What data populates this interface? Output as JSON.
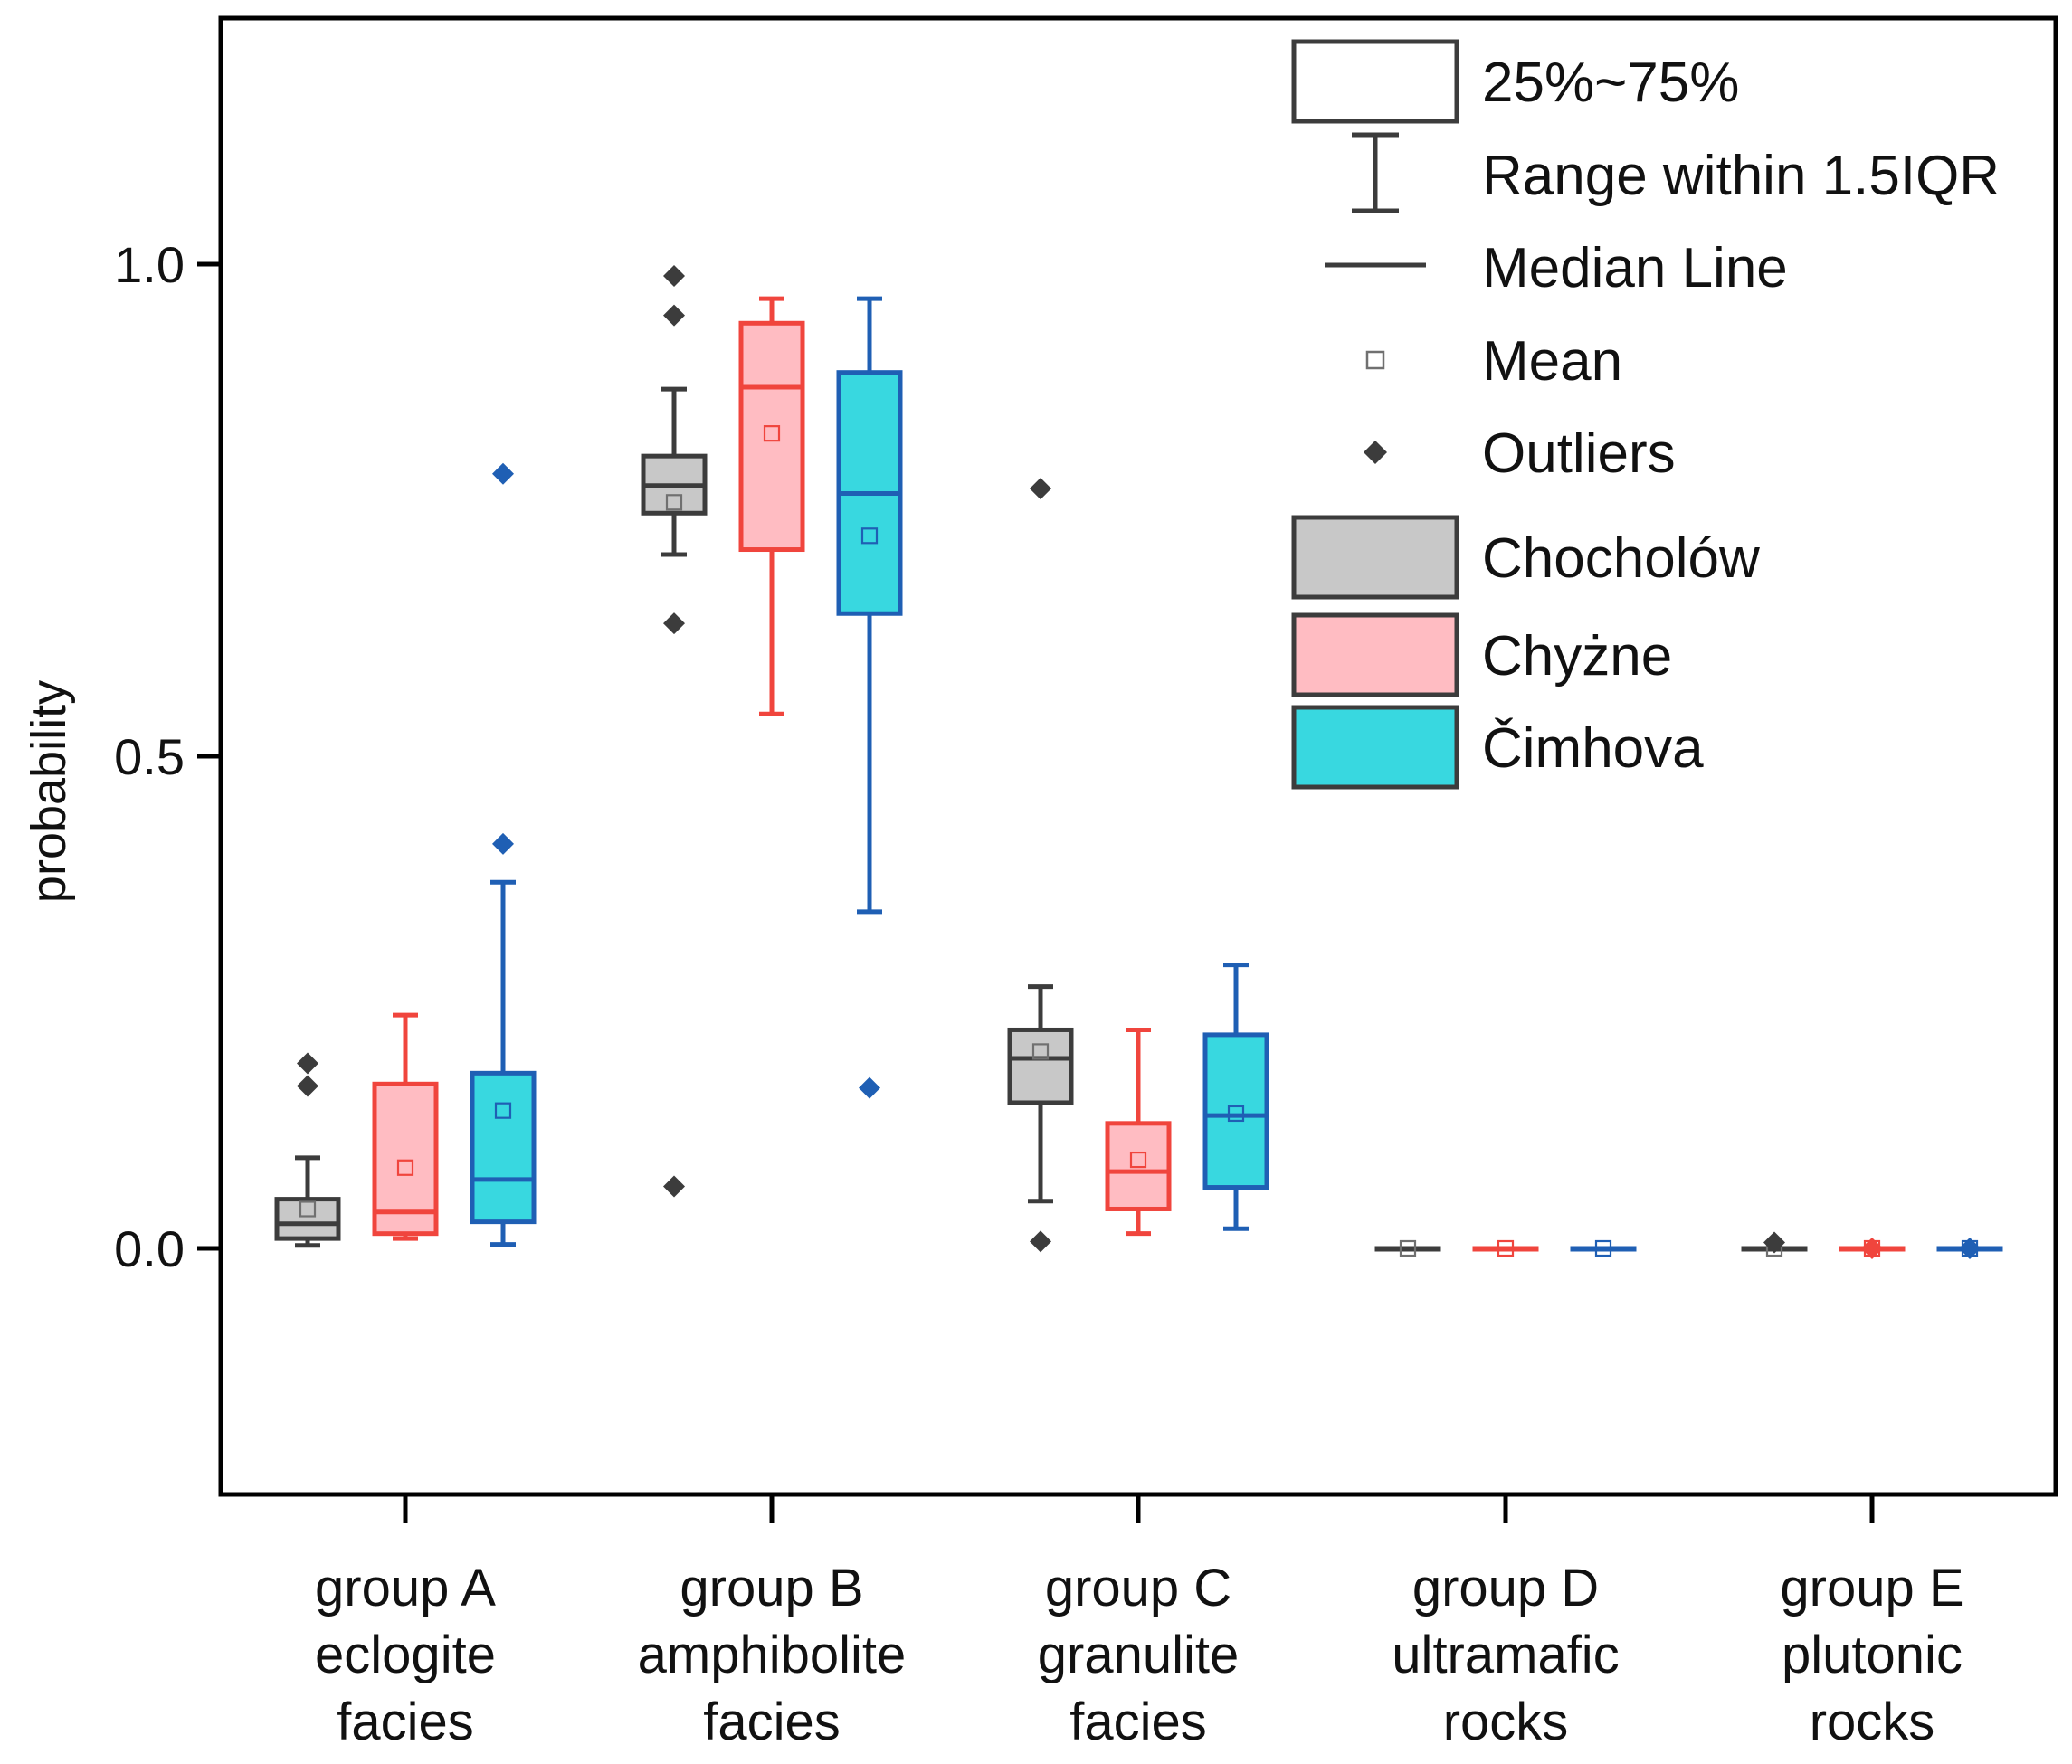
{
  "chart_data": {
    "type": "box",
    "title": "",
    "xlabel": "",
    "ylabel": "probability",
    "ylim": [
      -0.25,
      1.25
    ],
    "yticks": [
      0.0,
      0.5,
      1.0
    ],
    "ytick_labels": [
      "0.0",
      "0.5",
      "1.0"
    ],
    "categories": [
      {
        "lines": [
          "group A",
          "eclogite",
          "facies"
        ]
      },
      {
        "lines": [
          "group B",
          "amphibolite",
          "facies"
        ]
      },
      {
        "lines": [
          "group C",
          "granulite",
          "facies"
        ]
      },
      {
        "lines": [
          "group D",
          "ultramafic",
          "rocks"
        ]
      },
      {
        "lines": [
          "group E",
          "plutonic",
          "rocks"
        ]
      }
    ],
    "series": [
      {
        "name": "Chocholów",
        "fill": "#c8c8c8",
        "stroke": "#3c3c3c",
        "boxes": [
          {
            "q1": 0.01,
            "median": 0.025,
            "q3": 0.05,
            "whisker_low": 0.003,
            "whisker_high": 0.092,
            "mean": 0.04,
            "outliers": [
              0.188,
              0.165
            ]
          },
          {
            "q1": 0.747,
            "median": 0.775,
            "q3": 0.805,
            "whisker_low": 0.705,
            "whisker_high": 0.873,
            "mean": 0.758,
            "outliers": [
              0.988,
              0.948,
              0.635,
              0.063
            ]
          },
          {
            "q1": 0.148,
            "median": 0.193,
            "q3": 0.222,
            "whisker_low": 0.048,
            "whisker_high": 0.266,
            "mean": 0.2,
            "outliers": [
              0.772,
              0.007
            ]
          },
          {
            "q1": 0.0,
            "median": 0.0,
            "q3": 0.0,
            "whisker_low": 0.0,
            "whisker_high": 0.0,
            "mean": 0.0,
            "outliers": []
          },
          {
            "q1": 0.0,
            "median": 0.0,
            "q3": 0.0,
            "whisker_low": 0.0,
            "whisker_high": 0.0,
            "mean": 0.0,
            "outliers": [
              0.006
            ]
          }
        ]
      },
      {
        "name": "Chyżne",
        "fill": "#ffbcc2",
        "stroke": "#f0453d",
        "boxes": [
          {
            "q1": 0.015,
            "median": 0.037,
            "q3": 0.167,
            "whisker_low": 0.01,
            "whisker_high": 0.237,
            "mean": 0.082,
            "outliers": []
          },
          {
            "q1": 0.71,
            "median": 0.875,
            "q3": 0.94,
            "whisker_low": 0.543,
            "whisker_high": 0.965,
            "mean": 0.828,
            "outliers": []
          },
          {
            "q1": 0.04,
            "median": 0.078,
            "q3": 0.127,
            "whisker_low": 0.015,
            "whisker_high": 0.222,
            "mean": 0.09,
            "outliers": []
          },
          {
            "q1": 0.0,
            "median": 0.0,
            "q3": 0.0,
            "whisker_low": 0.0,
            "whisker_high": 0.0,
            "mean": 0.0,
            "outliers": []
          },
          {
            "q1": 0.0,
            "median": 0.0,
            "q3": 0.0,
            "whisker_low": 0.0,
            "whisker_high": 0.0,
            "mean": 0.0,
            "outliers": [
              0.0
            ]
          }
        ]
      },
      {
        "name": "Čimhova",
        "fill": "#38d8e0",
        "stroke": "#1f5fb4",
        "boxes": [
          {
            "q1": 0.027,
            "median": 0.07,
            "q3": 0.178,
            "whisker_low": 0.004,
            "whisker_high": 0.372,
            "mean": 0.14,
            "outliers": [
              0.787,
              0.411
            ]
          },
          {
            "q1": 0.645,
            "median": 0.767,
            "q3": 0.89,
            "whisker_low": 0.342,
            "whisker_high": 0.965,
            "mean": 0.724,
            "outliers": [
              0.163
            ]
          },
          {
            "q1": 0.062,
            "median": 0.135,
            "q3": 0.217,
            "whisker_low": 0.02,
            "whisker_high": 0.288,
            "mean": 0.137,
            "outliers": []
          },
          {
            "q1": 0.0,
            "median": 0.0,
            "q3": 0.0,
            "whisker_low": 0.0,
            "whisker_high": 0.0,
            "mean": 0.0,
            "outliers": []
          },
          {
            "q1": 0.0,
            "median": 0.0,
            "q3": 0.0,
            "whisker_low": 0.0,
            "whisker_high": 0.0,
            "mean": 0.0,
            "outliers": [
              0.0
            ]
          }
        ]
      }
    ],
    "legend": {
      "position": "top-right",
      "items": [
        {
          "kind": "box",
          "label": "25%~75%"
        },
        {
          "kind": "whisker",
          "label": "Range within 1.5IQR"
        },
        {
          "kind": "median",
          "label": "Median Line"
        },
        {
          "kind": "mean",
          "label": "Mean"
        },
        {
          "kind": "outlier",
          "label": "Outliers"
        },
        {
          "kind": "series",
          "series_index": 0,
          "label": "Chocholów"
        },
        {
          "kind": "series",
          "series_index": 1,
          "label": "Chyżne"
        },
        {
          "kind": "series",
          "series_index": 2,
          "label": "Čimhova"
        }
      ]
    },
    "colors": {
      "axis": "#000000",
      "legend_stroke": "#3c3c3c",
      "mean_marker": "#707070",
      "outlier_default": "#3c3c3c"
    }
  }
}
